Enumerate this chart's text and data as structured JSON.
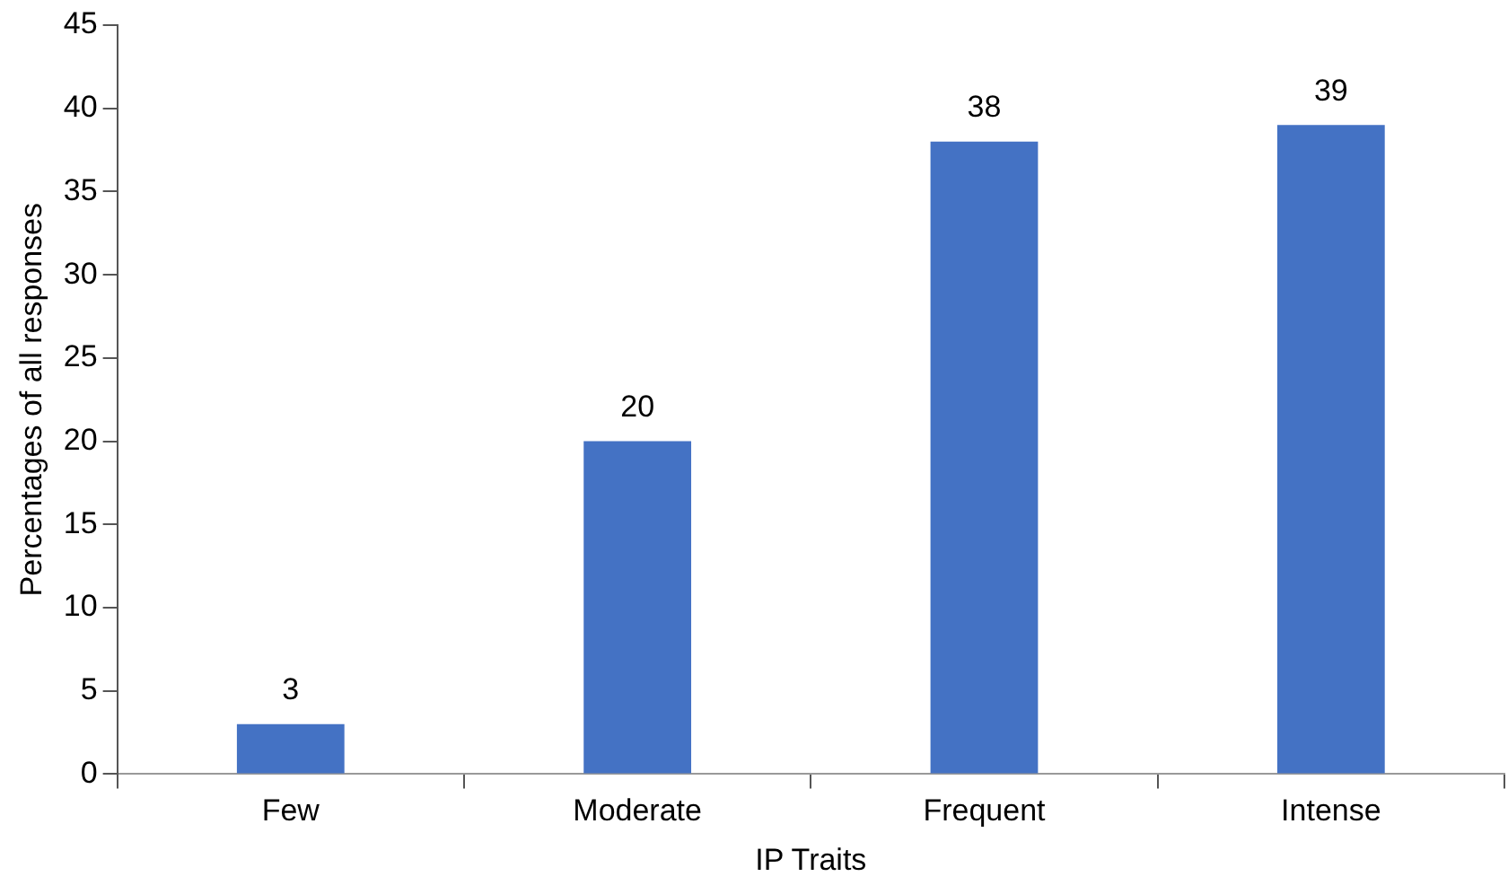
{
  "chart_data": {
    "type": "bar",
    "xlabel": "IP Traits",
    "ylabel": "Percentages of all responses",
    "categories": [
      "Few",
      "Moderate",
      "Frequent",
      "Intense"
    ],
    "values": [
      3,
      20,
      38,
      39
    ],
    "color": "#4472c4",
    "ylim": [
      0,
      45
    ],
    "yticks": [
      0,
      5,
      10,
      15,
      20,
      25,
      30,
      35,
      40,
      45
    ],
    "grid": false,
    "legend": false,
    "data_labels": true
  }
}
